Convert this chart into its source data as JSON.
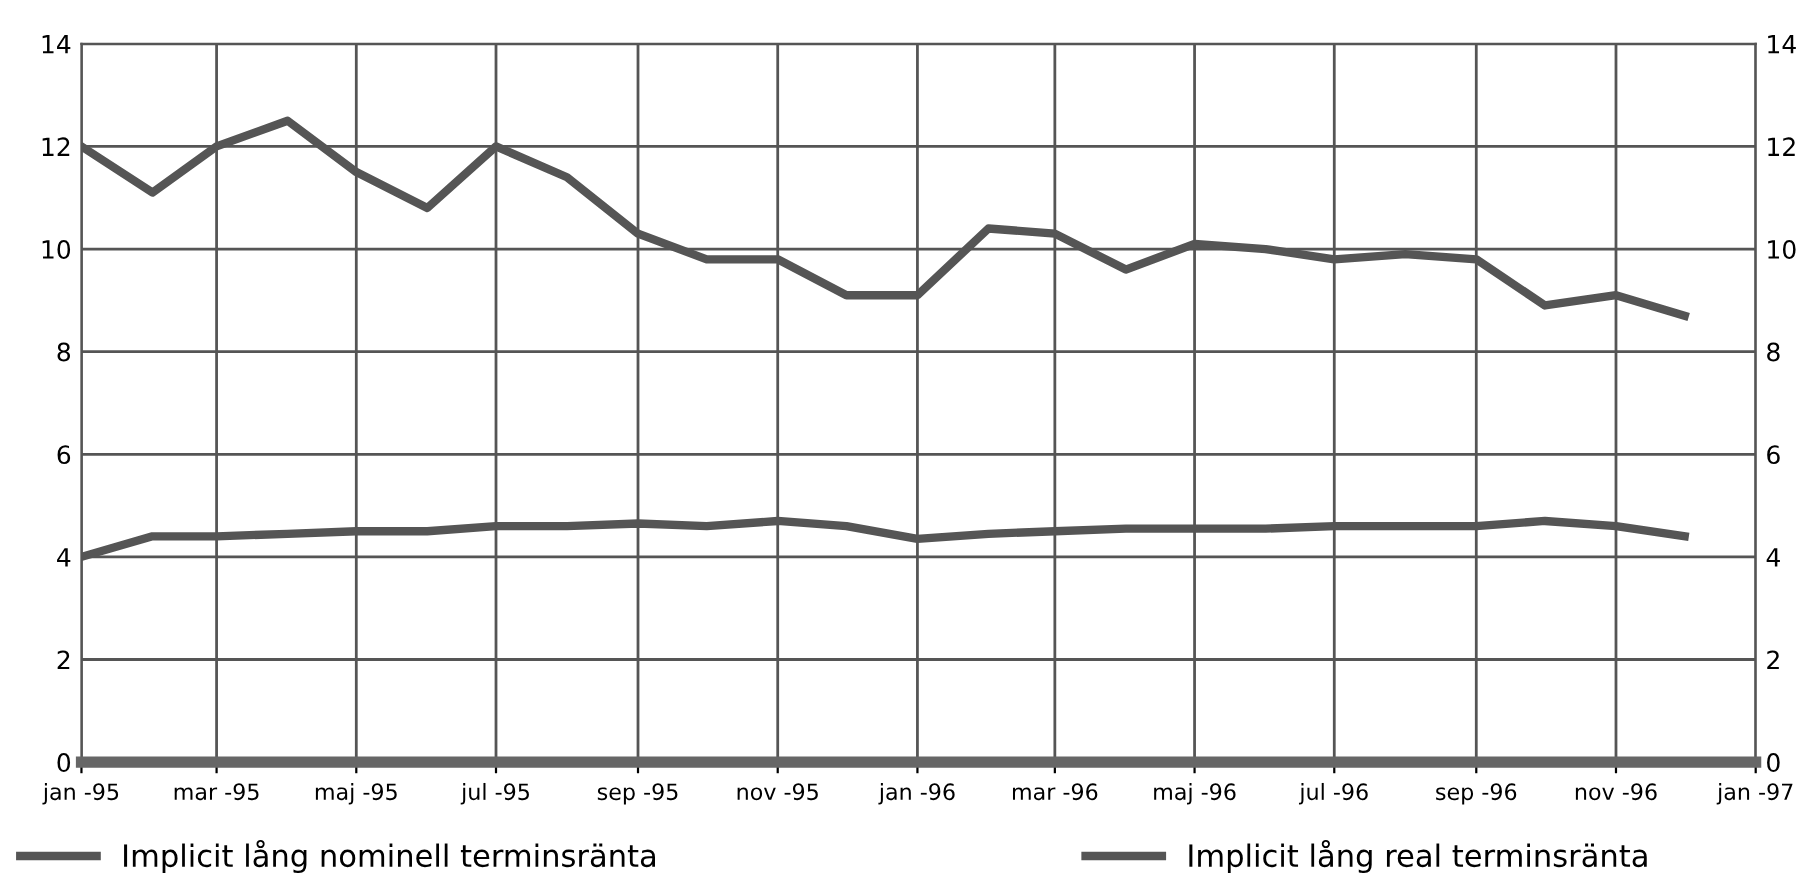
{
  "chart_data": {
    "type": "line",
    "x": [
      "1995-01",
      "1995-02",
      "1995-03",
      "1995-04",
      "1995-05",
      "1995-06",
      "1995-07",
      "1995-08",
      "1995-09",
      "1995-10",
      "1995-11",
      "1995-12",
      "1996-01",
      "1996-02",
      "1996-03",
      "1996-04",
      "1996-05",
      "1996-06",
      "1996-07",
      "1996-08",
      "1996-09",
      "1996-10",
      "1996-11",
      "1996-12"
    ],
    "series": [
      {
        "name": "Implicit lång nominell terminsränta",
        "color": "#555555",
        "values": [
          12.0,
          11.1,
          12.0,
          12.5,
          11.5,
          10.8,
          12.0,
          11.4,
          10.3,
          9.8,
          9.8,
          9.1,
          9.1,
          10.4,
          10.3,
          9.6,
          10.1,
          10.0,
          9.8,
          9.9,
          9.8,
          8.9,
          9.1,
          8.7
        ]
      },
      {
        "name": "Implicit lång real terminsränta",
        "color": "#555555",
        "values": [
          4.0,
          4.4,
          4.4,
          4.45,
          4.5,
          4.5,
          4.6,
          4.6,
          4.65,
          4.6,
          4.7,
          4.6,
          4.35,
          4.45,
          4.5,
          4.55,
          4.55,
          4.55,
          4.6,
          4.6,
          4.6,
          4.7,
          4.6,
          4.4
        ]
      }
    ],
    "xlim": [
      "1995-01",
      "1997-01"
    ],
    "xticks": [
      {
        "value": "1995-01",
        "label": "jan -95"
      },
      {
        "value": "1995-03",
        "label": "mar -95"
      },
      {
        "value": "1995-05",
        "label": "maj -95"
      },
      {
        "value": "1995-07",
        "label": "jul -95"
      },
      {
        "value": "1995-09",
        "label": "sep -95"
      },
      {
        "value": "1995-11",
        "label": "nov -95"
      },
      {
        "value": "1996-01",
        "label": "jan -96"
      },
      {
        "value": "1996-03",
        "label": "mar -96"
      },
      {
        "value": "1996-05",
        "label": "maj -96"
      },
      {
        "value": "1996-07",
        "label": "jul -96"
      },
      {
        "value": "1996-09",
        "label": "sep -96"
      },
      {
        "value": "1996-11",
        "label": "nov -96"
      },
      {
        "value": "1997-01",
        "label": "jan -97"
      }
    ],
    "ylim": [
      0,
      14
    ],
    "yticks": [
      0,
      2,
      4,
      6,
      8,
      10,
      12,
      14
    ],
    "y2lim": [
      0,
      14
    ],
    "y2ticks": [
      0,
      2,
      4,
      6,
      8,
      10,
      12,
      14
    ],
    "grid": true,
    "legend": "bottom",
    "marker": "none",
    "line_style": "solid"
  }
}
